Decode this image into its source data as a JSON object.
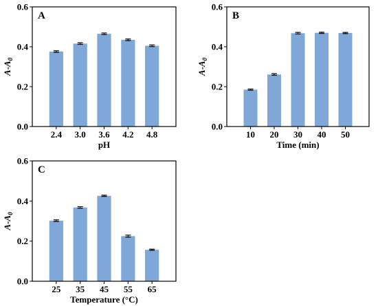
{
  "chart_data": [
    {
      "type": "bar",
      "panel_letter": "A",
      "categories": [
        "2.4",
        "3.0",
        "3.6",
        "4.2",
        "4.8"
      ],
      "values": [
        0.376,
        0.416,
        0.465,
        0.435,
        0.405
      ],
      "errors": [
        0.004,
        0.004,
        0.004,
        0.004,
        0.004
      ],
      "xlabel": "pH",
      "ylabel_main": "A-A",
      "ylabel_sub": "0",
      "ylim": [
        0,
        0.6
      ],
      "yticks": [
        "0.0",
        "0.2",
        "0.4",
        "0.6"
      ],
      "bar_color": "#7fa8d9",
      "grid": false
    },
    {
      "type": "bar",
      "panel_letter": "B",
      "categories": [
        "10",
        "20",
        "30",
        "40",
        "50"
      ],
      "values": [
        0.185,
        0.261,
        0.468,
        0.47,
        0.469
      ],
      "errors": [
        0.003,
        0.004,
        0.004,
        0.003,
        0.003
      ],
      "xlabel": "Time (min)",
      "ylabel_main": "A-A",
      "ylabel_sub": "0",
      "ylim": [
        0,
        0.6
      ],
      "yticks": [
        "0.0",
        "0.2",
        "0.4",
        "0.6"
      ],
      "bar_color": "#7fa8d9",
      "grid": false
    },
    {
      "type": "bar",
      "panel_letter": "C",
      "categories": [
        "25",
        "35",
        "45",
        "55",
        "65"
      ],
      "values": [
        0.302,
        0.368,
        0.426,
        0.225,
        0.157
      ],
      "errors": [
        0.004,
        0.004,
        0.003,
        0.005,
        0.003
      ],
      "xlabel": "Temperature (°C)",
      "ylabel_main": "A-A",
      "ylabel_sub": "0",
      "ylim": [
        0,
        0.6
      ],
      "yticks": [
        "0.0",
        "0.2",
        "0.4",
        "0.6"
      ],
      "bar_color": "#7fa8d9",
      "grid": false
    }
  ]
}
